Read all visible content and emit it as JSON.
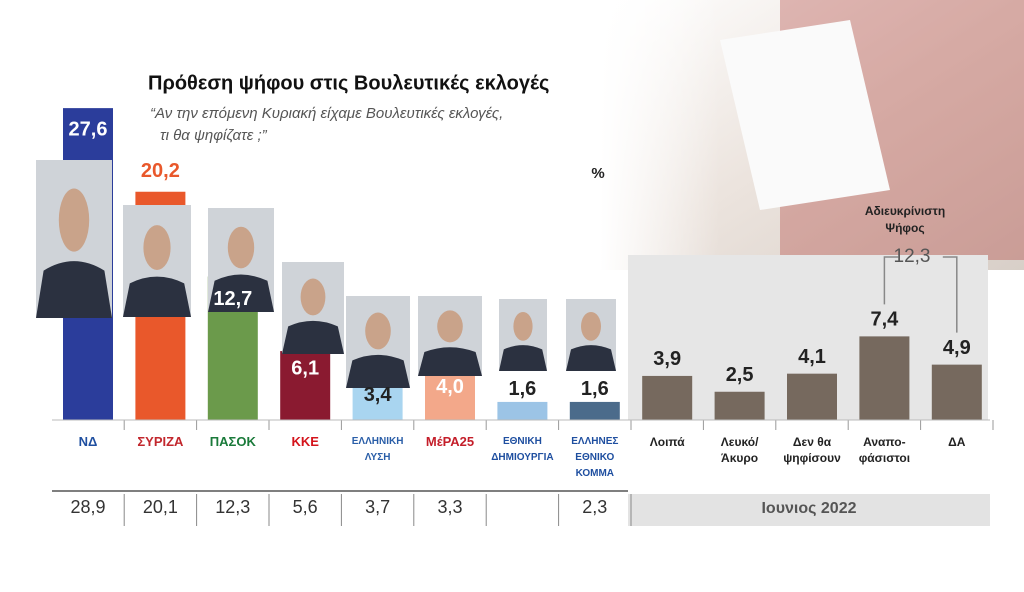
{
  "chart_data": {
    "type": "bar",
    "title": "Πρόθεση ψήφου στις Βουλευτικές εκλογές",
    "subtitle": [
      "“Αν την επόμενη Κυριακή είχαμε Βουλευτικές εκλογές,",
      "τι θα ψηφίζατε ;”"
    ],
    "unit": "%",
    "categories": [
      "ΝΔ",
      "ΣΥΡΙΖΑ",
      "ΠΑΣΟΚ",
      "ΚΚΕ",
      "ΕΛΛΗΝΙΚΗ ΛΥΣΗ",
      "ΜέΡΑ25",
      "ΕΘΝΙΚΗ ΔΗΜΙΟΥΡΓΙΑ",
      "ΕΛΛΗΝΕΣ ΕΘΝΙΚΟ ΚΟΜΜΑ",
      "Λοιπά",
      "Λευκό/ Άκυρο",
      "Δεν θα ψηφίσουν",
      "Αναπο- φάσιστοι",
      "ΔΑ"
    ],
    "values": [
      27.6,
      20.2,
      12.7,
      6.1,
      3.4,
      4.0,
      1.6,
      1.6,
      3.9,
      2.5,
      4.1,
      7.4,
      4.9
    ],
    "value_labels": [
      "27,6",
      "20,2",
      "12,7",
      "6,1",
      "3,4",
      "4,0",
      "1,6",
      "1,6",
      "3,9",
      "2,5",
      "4,1",
      "7,4",
      "4,9"
    ],
    "colors": [
      "#2b3d9b",
      "#e9582b",
      "#6b9a4b",
      "#8a1a30",
      "#a9d5f0",
      "#f3a88a",
      "#9cc4e6",
      "#4b6b8b",
      "#76695e",
      "#76695e",
      "#76695e",
      "#76695e",
      "#76695e"
    ],
    "previous": {
      "name": "Ιουνιος 2022",
      "values": [
        28.9,
        20.1,
        12.3,
        5.6,
        3.7,
        3.3,
        null,
        2.3,
        null,
        null,
        null,
        null,
        null
      ],
      "value_labels": [
        "28,9",
        "20,1",
        "12,3",
        "5,6",
        "3,7",
        "3,3",
        null,
        "2,3",
        null,
        null,
        null,
        null,
        null
      ]
    },
    "bracket": {
      "label": [
        "Αδιευκρίνιστη",
        "Ψήφος"
      ],
      "value": 12.3,
      "value_label": "12,3"
    }
  }
}
